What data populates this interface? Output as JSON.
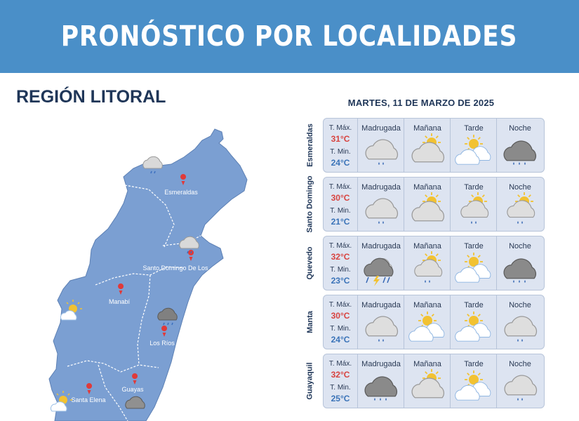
{
  "header": {
    "title": "PRONÓSTICO POR LOCALIDADES"
  },
  "region": {
    "title": "REGIÓN LITORAL"
  },
  "forecast": {
    "date": "MARTES, 11 DE MARZO DE 2025",
    "max_label": "T. Máx.",
    "min_label": "T. Min.",
    "periods": [
      "Madrugada",
      "Mañana",
      "Tarde",
      "Noche"
    ],
    "locations": [
      {
        "name": "Esmeraldas",
        "max": "31°C",
        "min": "24°C",
        "icons": [
          "cloud-drizzle-icon",
          "partly-cloudy-icon",
          "sun-clouds-icon",
          "dark-cloud-rain-icon"
        ]
      },
      {
        "name": "Santo Domingo",
        "max": "30°C",
        "min": "21°C",
        "icons": [
          "cloud-drizzle-icon",
          "partly-cloudy-icon",
          "partly-cloudy-drizzle-icon",
          "partly-cloudy-drizzle-icon"
        ]
      },
      {
        "name": "Quevedo",
        "max": "32°C",
        "min": "23°C",
        "icons": [
          "thunderstorm-icon",
          "partly-cloudy-drizzle-icon",
          "sun-clouds-icon",
          "dark-cloud-rain-icon"
        ]
      },
      {
        "name": "Manta",
        "max": "30°C",
        "min": "24°C",
        "icons": [
          "cloud-drizzle-icon",
          "sun-clouds-icon",
          "sun-clouds-icon",
          "cloud-drizzle-icon"
        ]
      },
      {
        "name": "Guayaquil",
        "max": "32°C",
        "min": "25°C",
        "icons": [
          "dark-cloud-rain-icon",
          "partly-cloudy-icon",
          "sun-clouds-icon",
          "cloud-drizzle-icon"
        ]
      }
    ]
  },
  "map": {
    "cities": [
      "Esmeraldas",
      "Santo Domingo De Los",
      "Manabí",
      "Los Ríos",
      "Guayas",
      "Santa Elena"
    ],
    "colors": {
      "land": "#7b9fd2",
      "border": "#ffffff",
      "pin": "#e03a3a"
    }
  }
}
